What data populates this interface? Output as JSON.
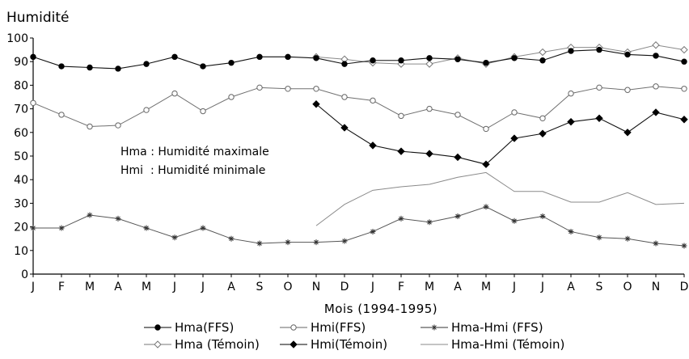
{
  "chart_data": {
    "type": "line",
    "ylabel": "Humidité",
    "xlabel": "Mois (1994-1995)",
    "ylim": [
      0,
      100
    ],
    "yticks": [
      0,
      10,
      20,
      30,
      40,
      50,
      60,
      70,
      80,
      90,
      100
    ],
    "categories": [
      "J",
      "F",
      "M",
      "A",
      "M",
      "J",
      "J",
      "A",
      "S",
      "O",
      "N",
      "D",
      "J",
      "F",
      "M",
      "A",
      "M",
      "J",
      "J",
      "A",
      "S",
      "O",
      "N",
      "D"
    ],
    "grid": false,
    "legend_position": "bottom",
    "annotations": [
      "Hma : Humidité maximale",
      "Hmi  : Humidité minimale"
    ],
    "series": [
      {
        "name": "Hma(FFS)",
        "marker": "filled-circle",
        "color": "#000000",
        "values": [
          null,
          null,
          null,
          null,
          null,
          null,
          null,
          null,
          null,
          null,
          91.5,
          89,
          90.5,
          90.5,
          91.5,
          91,
          89.5,
          91.5,
          90.5,
          94.5,
          95,
          93,
          92.5,
          90
        ]
      },
      {
        "name": "Hmi(FFS)",
        "marker": "open-circle",
        "color": "#666666",
        "values": [
          72.5,
          67.5,
          62.5,
          63,
          69.5,
          76.5,
          69,
          75,
          79,
          78.5,
          78.5,
          75,
          73.5,
          67,
          70,
          67.5,
          61.5,
          68.5,
          66,
          76.5,
          79,
          78,
          79.5,
          78.5
        ]
      },
      {
        "name": "Hma-Hmi (FFS)",
        "marker": "asterisk",
        "color": "#444444",
        "values": [
          19.5,
          19.5,
          25,
          23.5,
          19.5,
          15.5,
          19.5,
          15,
          13,
          13.5,
          13.5,
          14,
          18,
          23.5,
          22,
          24.5,
          28.5,
          22.5,
          24.5,
          18,
          15.5,
          15,
          13,
          12
        ]
      },
      {
        "name": "Hma (Témoin)",
        "marker": "open-diamond",
        "color": "#888888",
        "values": [
          null,
          null,
          null,
          null,
          null,
          null,
          null,
          null,
          null,
          null,
          92,
          91,
          89.5,
          89,
          89,
          91.5,
          89,
          92,
          94,
          96,
          96,
          94,
          97,
          95
        ]
      },
      {
        "name": "Hmi(Témoin)",
        "marker": "filled-diamond",
        "color": "#000000",
        "values": [
          92,
          88,
          87.5,
          87,
          89,
          92,
          88,
          89.5,
          92,
          92,
          null,
          62,
          54.5,
          52,
          51,
          49.5,
          46.5,
          57.5,
          59.5,
          64.5,
          66,
          60,
          68.5,
          65.5
        ],
        "values_after_nov": [
          null,
          null,
          null,
          null,
          null,
          null,
          null,
          null,
          null,
          null,
          72,
          62,
          54.5,
          52,
          51,
          49.5,
          46.5,
          57.5,
          59.5,
          64.5,
          66,
          60,
          68.5,
          65.5
        ]
      },
      {
        "name": "Hma-Hmi (Témoin)",
        "marker": "none",
        "color": "#888888",
        "values": [
          null,
          null,
          null,
          null,
          null,
          null,
          null,
          null,
          null,
          null,
          20.5,
          29.5,
          35.5,
          37,
          38,
          41,
          43,
          35,
          35,
          30.5,
          30.5,
          34.5,
          29.5,
          30
        ]
      }
    ],
    "black_line": [
      92,
      88,
      87.5,
      87,
      89,
      92,
      88,
      89.5,
      92,
      92,
      91.5,
      89,
      90.5,
      90.5,
      91.5,
      91,
      89.5,
      91.5,
      90.5,
      94.5,
      95,
      93,
      92.5,
      90
    ],
    "black_line_markers": "filled-circle",
    "drop_line": [
      null,
      null,
      null,
      null,
      null,
      null,
      null,
      null,
      null,
      null,
      72,
      62,
      54.5,
      52,
      51,
      49.5,
      46.5,
      57.5,
      59.5,
      64.5,
      66,
      60,
      68.5,
      65.5
    ],
    "drop_line_markers": "filled-diamond"
  },
  "legend": {
    "row1": [
      "Hma(FFS)",
      "Hmi(FFS)",
      "Hma-Hmi (FFS)"
    ],
    "row2": [
      "Hma (Témoin)",
      "Hmi(Témoin)",
      "Hma-Hmi (Témoin)"
    ]
  }
}
